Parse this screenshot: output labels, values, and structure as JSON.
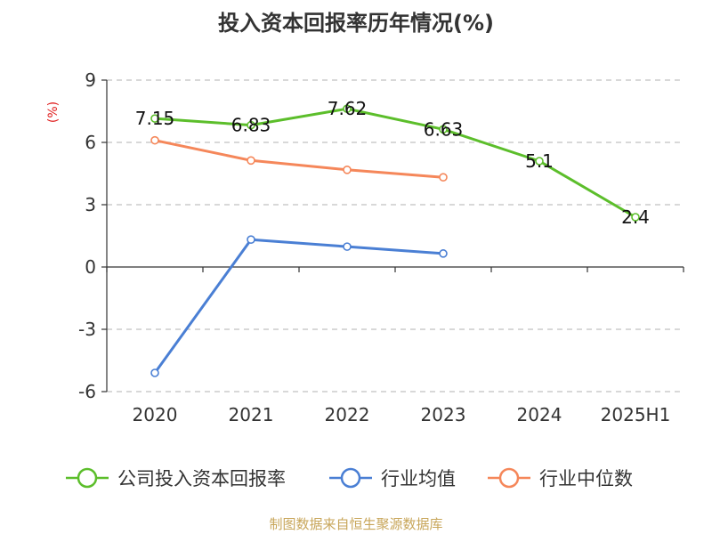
{
  "chart_data": {
    "type": "line",
    "title": "投入资本回报率历年情况(%)",
    "ylabel": "(%)",
    "categories": [
      "2020",
      "2021",
      "2022",
      "2023",
      "2024",
      "2025H1"
    ],
    "ylim": [
      -6,
      9
    ],
    "yticks": [
      9,
      6,
      3,
      0,
      -3,
      -6
    ],
    "grid": true,
    "legend_position": "bottom",
    "series": [
      {
        "name": "公司投入资本回报率",
        "color": "#5cbe2b",
        "values": [
          7.15,
          6.83,
          7.62,
          6.63,
          5.1,
          2.4
        ],
        "show_labels": true
      },
      {
        "name": "行业均值",
        "color": "#4a7fd4",
        "values": [
          -5.1,
          1.32,
          0.98,
          0.65,
          null,
          null
        ],
        "show_labels": false
      },
      {
        "name": "行业中位数",
        "color": "#f5875a",
        "values": [
          6.1,
          5.13,
          4.68,
          4.32,
          null,
          null
        ],
        "show_labels": false
      }
    ]
  },
  "source": "制图数据来自恒生聚源数据库"
}
